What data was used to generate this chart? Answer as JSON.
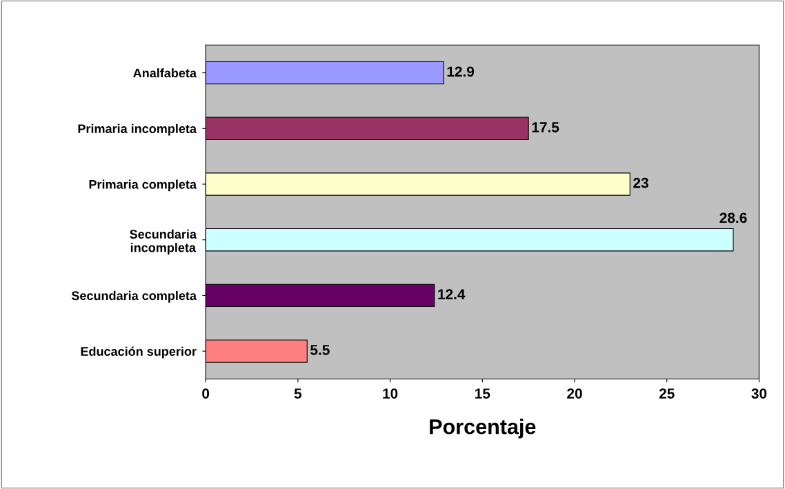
{
  "chart_data": {
    "type": "bar",
    "orientation": "horizontal",
    "categories": [
      "Analfabeta",
      "Primaria incompleta",
      "Primaria completa",
      "Secundaria\nincompleta",
      "Secundaria completa",
      "Educación superior"
    ],
    "values": [
      12.9,
      17.5,
      23,
      28.6,
      12.4,
      5.5
    ],
    "colors": [
      "#9999ff",
      "#993366",
      "#ffffcc",
      "#ccffff",
      "#660066",
      "#ff8080"
    ],
    "xlabel": "Porcentaje",
    "xlim": [
      0,
      30
    ],
    "xticks": [
      0,
      5,
      10,
      15,
      20,
      25,
      30
    ],
    "data_labels": true,
    "grid": false,
    "legend": false
  }
}
